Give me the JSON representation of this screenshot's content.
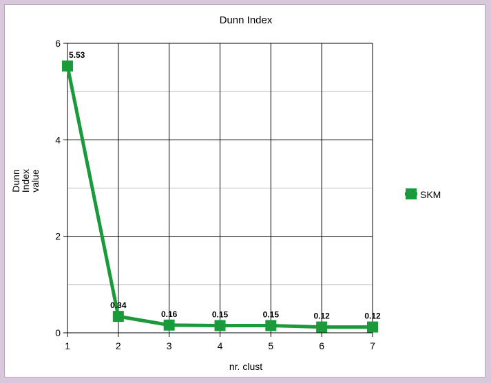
{
  "chart_data": {
    "type": "line",
    "title": "Dunn Index",
    "xlabel": "nr. clust",
    "ylabel": [
      "Dunn",
      "Index",
      "value"
    ],
    "x": [
      1,
      2,
      3,
      4,
      5,
      6,
      7
    ],
    "xlim": [
      1,
      7
    ],
    "ylim": [
      0,
      6
    ],
    "yticks": [
      0,
      2,
      4,
      6
    ],
    "series": [
      {
        "name": "SKM",
        "values": [
          5.53,
          0.34,
          0.16,
          0.15,
          0.15,
          0.12,
          0.12
        ],
        "labels": [
          "5.53",
          "0.34",
          "0.16",
          "0.15",
          "0.15",
          "0.12",
          "0.12"
        ],
        "color": "#1a9a3a"
      }
    ],
    "grid": true,
    "legend_position": "right"
  }
}
